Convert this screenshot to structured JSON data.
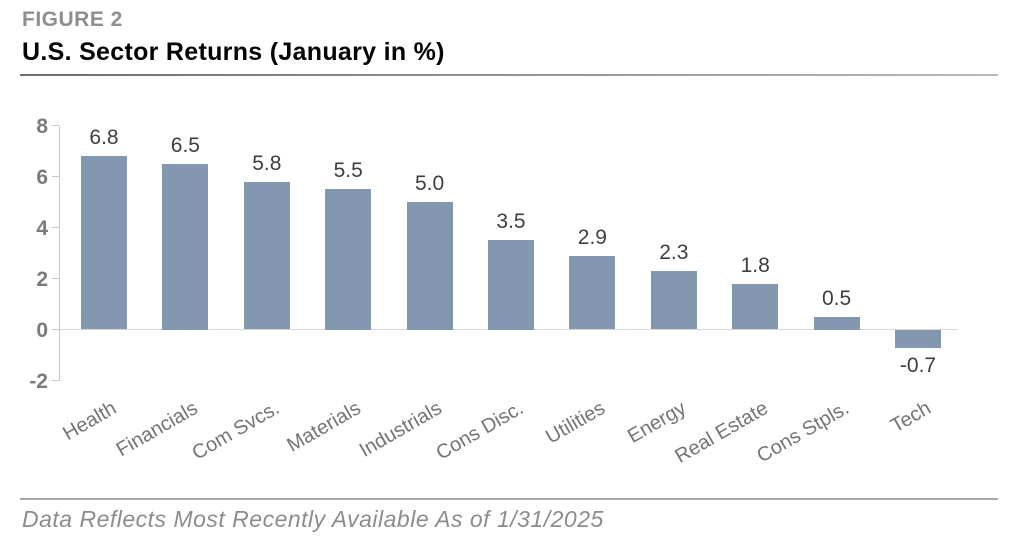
{
  "header": {
    "figure_label": "FIGURE 2",
    "title": "U.S. Sector Returns (January in %)"
  },
  "chart_data": {
    "type": "bar",
    "title": "U.S. Sector Returns (January in %)",
    "categories": [
      "Health",
      "Financials",
      "Com Svcs.",
      "Materials",
      "Industrials",
      "Cons Disc.",
      "Utilities",
      "Energy",
      "Real Estate",
      "Cons Stpls.",
      "Tech"
    ],
    "values": [
      6.8,
      6.5,
      5.8,
      5.5,
      5.0,
      3.5,
      2.9,
      2.3,
      1.8,
      0.5,
      -0.7
    ],
    "value_labels": [
      "6.8",
      "6.5",
      "5.8",
      "5.5",
      "5.0",
      "3.5",
      "2.9",
      "2.3",
      "1.8",
      "0.5",
      "-0.7"
    ],
    "xlabel": "",
    "ylabel": "",
    "ylim": [
      -2,
      8
    ],
    "yticks": [
      8,
      6,
      4,
      2,
      0,
      -2
    ],
    "grid": false,
    "legend_position": "none",
    "bar_color": "#8397B0",
    "value_label_color": "#3e3e3e",
    "axis_color": "#c7c7c7",
    "tick_label_color": "#7b7b7b",
    "category_label_color": "#747474"
  },
  "footer": {
    "note": "Data Reflects Most Recently Available As of 1/31/2025"
  }
}
